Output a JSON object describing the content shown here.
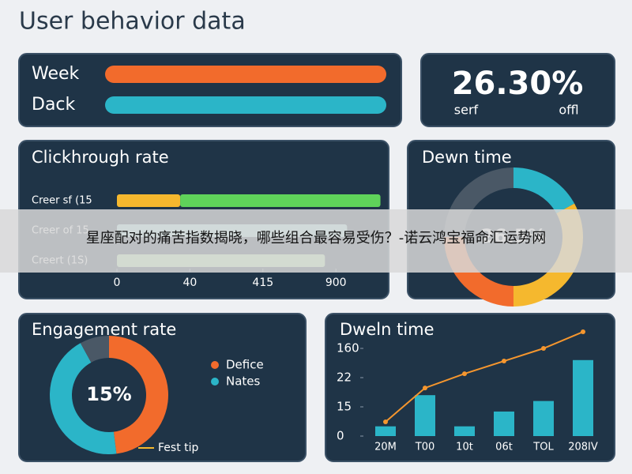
{
  "title": "User behavior data",
  "banner": "星座配对的痛苦指数揭晓，哪些组合最容易受伤？-诺云鸿宝福命汇运势网",
  "legend_panel": {
    "labels": [
      "Week",
      "Dack"
    ],
    "colors": [
      "#f26b2c",
      "#2bb5c8"
    ]
  },
  "kpi": {
    "value": "26.30%",
    "labels": [
      "serf",
      "offl"
    ]
  },
  "chart_data": [
    {
      "type": "bar",
      "orientation": "horizontal",
      "title": "Clickhrough rate",
      "categories": [
        "Creer sf (15",
        "Creer of 15",
        "Creert (1S)"
      ],
      "series": [
        {
          "colors": [
            "#f5b82e",
            "#a8e4e0",
            "#b5e8a8"
          ],
          "values": [
            260,
            946,
            855
          ]
        },
        {
          "color": "#5fd35a",
          "values": [
            823,
            0,
            0
          ]
        }
      ],
      "xlim": [
        0,
        1000
      ],
      "xticks": [
        0,
        {
          "value": 300,
          "label": "40"
        },
        {
          "value": 600,
          "label": "415"
        },
        900
      ]
    },
    {
      "type": "pie",
      "title": "Dewn time",
      "center_label": "26.5%",
      "colors": [
        "#2bb5c8",
        "#f5b82e",
        "#f26b2c",
        "#4a5866"
      ],
      "values": [
        17,
        33,
        25,
        25
      ]
    },
    {
      "type": "pie",
      "title": "Engagement rate",
      "center_label": "15%",
      "categories": [
        "Defice",
        "Nates",
        null
      ],
      "colors": [
        "#f26b2c",
        "#2bb5c8",
        "#4a5866"
      ],
      "values": [
        48,
        44,
        8
      ],
      "note": "Fest tip",
      "note_color": "#f5b82e"
    },
    {
      "type": "bar",
      "title": "Dweln time",
      "categories": [
        "20M",
        "T00",
        "10t",
        "06t",
        "TOL",
        "208IV"
      ],
      "series": [
        {
          "type": "bar",
          "color": "#2bb5c8",
          "values": [
            5,
            21,
            5,
            12.6,
            18,
            39
          ]
        },
        {
          "type": "line",
          "color": "#f5962e",
          "values": [
            7.3,
            24.7,
            32,
            38.5,
            45,
            53.5
          ]
        }
      ],
      "ylim": [
        0,
        60
      ],
      "yticks": [
        0,
        15,
        {
          "value": 30,
          "label": "22"
        },
        {
          "value": 45,
          "label": "160"
        }
      ]
    }
  ]
}
